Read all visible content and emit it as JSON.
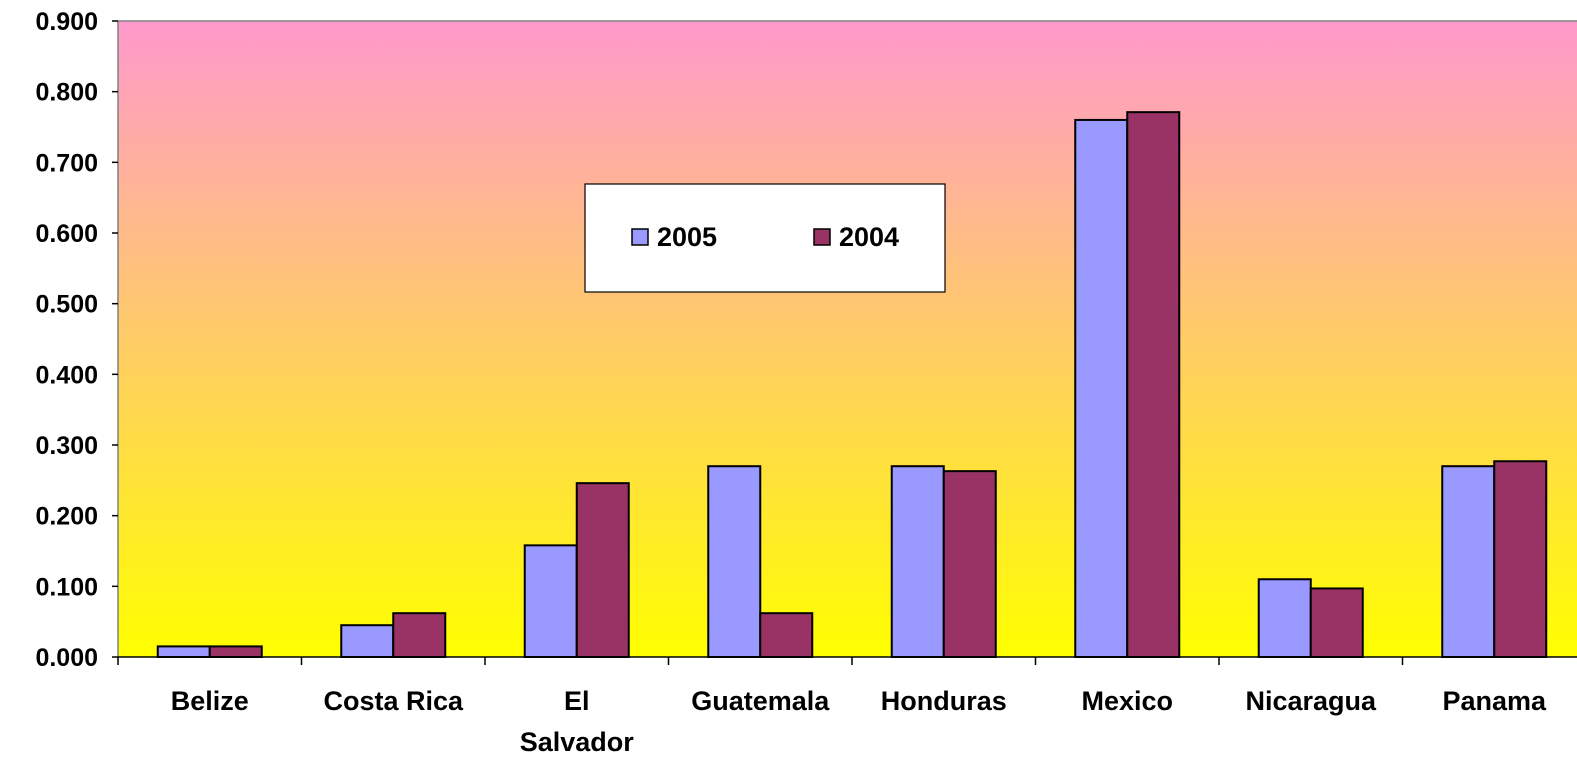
{
  "chart_data": {
    "type": "bar",
    "title": "",
    "xlabel": "",
    "ylabel": "",
    "ylim": [
      0,
      0.9
    ],
    "y_ticks": [
      "0.000",
      "0.100",
      "0.200",
      "0.300",
      "0.400",
      "0.500",
      "0.600",
      "0.700",
      "0.800",
      "0.900"
    ],
    "categories": [
      [
        "Belize"
      ],
      [
        "Costa Rica"
      ],
      [
        "El",
        "Salvador"
      ],
      [
        "Guatemala"
      ],
      [
        "Honduras"
      ],
      [
        "Mexico"
      ],
      [
        "Nicaragua"
      ],
      [
        "Panama"
      ]
    ],
    "series": [
      {
        "name": "2005",
        "color": "#9999ff",
        "values": [
          0.015,
          0.045,
          0.158,
          0.27,
          0.27,
          0.76,
          0.11,
          0.27
        ]
      },
      {
        "name": "2004",
        "color": "#993366",
        "values": [
          0.015,
          0.062,
          0.246,
          0.062,
          0.263,
          0.771,
          0.097,
          0.277
        ]
      }
    ],
    "grid": false,
    "legend": "top-center",
    "background_gradient": [
      "#ff99cc",
      "#ffff00"
    ]
  }
}
